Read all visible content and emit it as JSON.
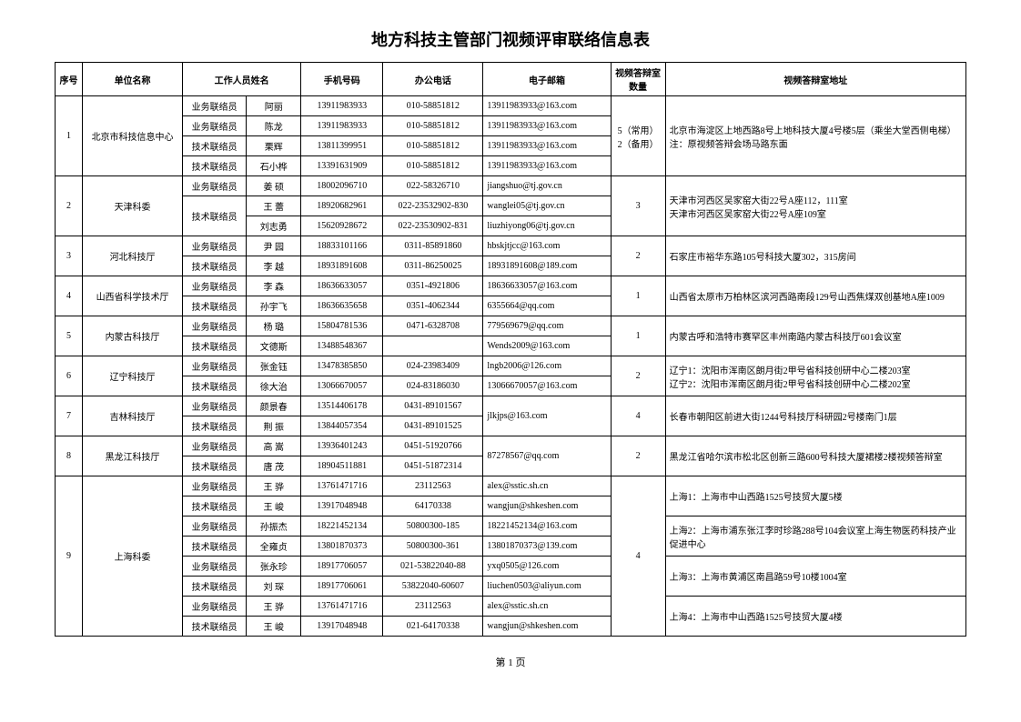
{
  "title": "地方科技主管部门视频评审联络信息表",
  "page_footer": "第 1 页",
  "columns": [
    "序号",
    "单位名称",
    "工作人员姓名",
    "",
    "手机号码",
    "办公电话",
    "电子邮箱",
    "视频答辩室数量",
    "视频答辩室地址"
  ],
  "style": {
    "font_family": "SimSun",
    "font_size_body": 10,
    "font_size_title": 18,
    "border_color": "#000000",
    "background_color": "#ffffff",
    "text_color": "#000000",
    "column_widths_pct": [
      3,
      11,
      7,
      6,
      9,
      11,
      14,
      6,
      33
    ]
  },
  "rows": [
    {
      "seq": "1",
      "unit": "北京市科技信息中心",
      "rooms": "5（常用）\n2（备用）",
      "addr": "北京市海淀区上地西路8号上地科技大厦4号楼5层（乘坐大堂西侧电梯）\n注：原视频答辩会场马路东面",
      "staff": [
        {
          "role": "业务联络员",
          "name": "阿丽",
          "phone": "13911983933",
          "tel": "010-58851812",
          "email": "13911983933@163.com"
        },
        {
          "role": "业务联络员",
          "name": "陈龙",
          "phone": "13911983933",
          "tel": "010-58851812",
          "email": "13911983933@163.com"
        },
        {
          "role": "技术联络员",
          "name": "栗辉",
          "phone": "13811399951",
          "tel": "010-58851812",
          "email": "13911983933@163.com"
        },
        {
          "role": "技术联络员",
          "name": "石小桦",
          "phone": "13391631909",
          "tel": "010-58851812",
          "email": "13911983933@163.com"
        }
      ]
    },
    {
      "seq": "2",
      "unit": "天津科委",
      "rooms": "3",
      "addr": "天津市河西区吴家窑大街22号A座112，111室\n天津市河西区吴家窑大街22号A座109室",
      "staff": [
        {
          "role": "业务联络员",
          "name": "姜 硕",
          "phone": "18002096710",
          "tel": "022-58326710",
          "email": "jiangshuo@tj.gov.cn"
        },
        {
          "role": "技术联络员",
          "name": "王 蕾",
          "phone": "18920682961",
          "tel": "022-23532902-830",
          "email": "wanglei05@tj.gov.cn",
          "role_rowspan": 2
        },
        {
          "name": "刘志勇",
          "phone": "15620928672",
          "tel": "022-23530902-831",
          "email": "liuzhiyong06@tj.gov.cn"
        }
      ]
    },
    {
      "seq": "3",
      "unit": "河北科技厅",
      "rooms": "2",
      "addr": "石家庄市裕华东路105号科技大厦302，315房间",
      "staff": [
        {
          "role": "业务联络员",
          "name": "尹 园",
          "phone": "18833101166",
          "tel": "0311-85891860",
          "email": "hbskjtjcc@163.com"
        },
        {
          "role": "技术联络员",
          "name": "李 越",
          "phone": "18931891608",
          "tel": "0311-86250025",
          "email": "18931891608@189.com"
        }
      ]
    },
    {
      "seq": "4",
      "unit": "山西省科学技术厅",
      "rooms": "1",
      "addr": "山西省太原市万柏林区滨河西路南段129号山西焦煤双创基地A座1009",
      "staff": [
        {
          "role": "业务联络员",
          "name": "李 森",
          "phone": "18636633057",
          "tel": "0351-4921806",
          "email": "18636633057@163.com"
        },
        {
          "role": "技术联络员",
          "name": "孙宇飞",
          "phone": "18636635658",
          "tel": "0351-4062344",
          "email": "6355664@qq.com"
        }
      ]
    },
    {
      "seq": "5",
      "unit": "内蒙古科技厅",
      "rooms": "1",
      "addr": "内蒙古呼和浩特市赛罕区丰州南路内蒙古科技厅601会议室",
      "staff": [
        {
          "role": "业务联络员",
          "name": "杨 璐",
          "phone": "15804781536",
          "tel": "0471-6328708",
          "email": "779569679@qq.com"
        },
        {
          "role": "技术联络员",
          "name": "文德斯",
          "phone": "13488548367",
          "tel": "",
          "email": "Wends2009@163.com"
        }
      ]
    },
    {
      "seq": "6",
      "unit": "辽宁科技厅",
      "rooms": "2",
      "addr": "辽宁1：沈阳市浑南区朗月街2甲号省科技创研中心二楼203室\n辽宁2：沈阳市浑南区朗月街2甲号省科技创研中心二楼202室",
      "staff": [
        {
          "role": "业务联络员",
          "name": "张金钰",
          "phone": "13478385850",
          "tel": "024-23983409",
          "email": "lngb2006@126.com"
        },
        {
          "role": "技术联络员",
          "name": "徐大治",
          "phone": "13066670057",
          "tel": "024-83186030",
          "email": "13066670057@163.com"
        }
      ]
    },
    {
      "seq": "7",
      "unit": "吉林科技厅",
      "rooms": "4",
      "addr": "长春市朝阳区前进大街1244号科技厅科研园2号楼南门1层",
      "email_shared": "jlkjps@163.com",
      "staff": [
        {
          "role": "业务联络员",
          "name": "颜景春",
          "phone": "13514406178",
          "tel": "0431-89101567"
        },
        {
          "role": "技术联络员",
          "name": "荆 振",
          "phone": "13844057354",
          "tel": "0431-89101525"
        }
      ]
    },
    {
      "seq": "8",
      "unit": "黑龙江科技厅",
      "rooms": "2",
      "addr": "黑龙江省哈尔滨市松北区创新三路600号科技大厦裙楼2楼视频答辩室",
      "email_shared": "87278567@qq.com",
      "staff": [
        {
          "role": "业务联络员",
          "name": "高 嵩",
          "phone": "13936401243",
          "tel": "0451-51920766"
        },
        {
          "role": "技术联络员",
          "name": "唐 茂",
          "phone": "18904511881",
          "tel": "0451-51872314"
        }
      ]
    },
    {
      "seq": "9",
      "unit": "上海科委",
      "rooms": "4",
      "addr_groups": [
        {
          "span": 2,
          "text": "上海1：上海市中山西路1525号技贸大厦5楼"
        },
        {
          "span": 2,
          "text": "上海2：上海市浦东张江李时珍路288号104会议室上海生物医药科技产业促进中心"
        },
        {
          "span": 2,
          "text": "上海3：上海市黄浦区南昌路59号10楼1004室"
        },
        {
          "span": 2,
          "text": "上海4：上海市中山西路1525号技贸大厦4楼"
        }
      ],
      "staff": [
        {
          "role": "业务联络员",
          "name": "王 骅",
          "phone": "13761471716",
          "tel": "23112563",
          "email": "alex@sstic.sh.cn"
        },
        {
          "role": "技术联络员",
          "name": "王 峻",
          "phone": "13917048948",
          "tel": "64170338",
          "email": "wangjun@shkeshen.com"
        },
        {
          "role": "业务联络员",
          "name": "孙振杰",
          "phone": "18221452134",
          "tel": "50800300-185",
          "email": "18221452134@163.com"
        },
        {
          "role": "技术联络员",
          "name": "全雍贞",
          "phone": "13801870373",
          "tel": "50800300-361",
          "email": "13801870373@139.com"
        },
        {
          "role": "业务联络员",
          "name": "张永珍",
          "phone": "18917706057",
          "tel": "021-53822040-88",
          "email": "yxq0505@126.com"
        },
        {
          "role": "技术联络员",
          "name": "刘 琛",
          "phone": "18917706061",
          "tel": "53822040-60607",
          "email": "liuchen0503@aliyun.com"
        },
        {
          "role": "业务联络员",
          "name": "王 骅",
          "phone": "13761471716",
          "tel": "23112563",
          "email": "alex@sstic.sh.cn"
        },
        {
          "role": "技术联络员",
          "name": "王 峻",
          "phone": "13917048948",
          "tel": "021-64170338",
          "email": "wangjun@shkeshen.com"
        }
      ]
    }
  ]
}
